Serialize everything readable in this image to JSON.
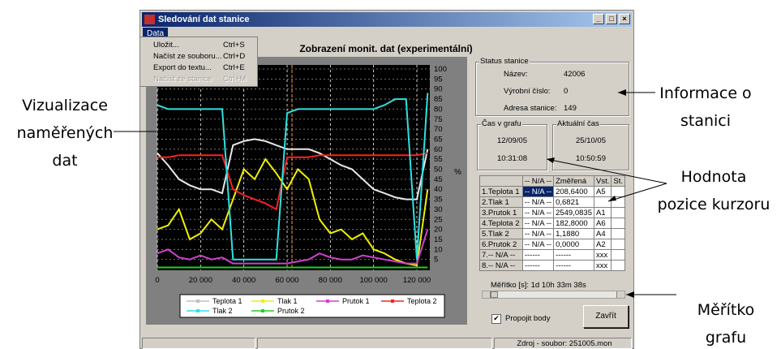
{
  "window": {
    "title": "Sledování dat stanice",
    "menu": "Data",
    "menu_items": [
      {
        "label": "Uložit...",
        "shortcut": "Ctrl+S"
      },
      {
        "label": "Načíst ze souboru...",
        "shortcut": "Ctrl+D"
      },
      {
        "label": "Export do textu...",
        "shortcut": "Ctrl+E"
      },
      {
        "label": "Načíst ze stanice",
        "shortcut": "Ctrl+M",
        "disabled": true
      }
    ]
  },
  "chart_data": {
    "type": "line",
    "title": "Zobrazení monit. dat (experimentální)",
    "y_unit_label": "%",
    "x": [
      0,
      5000,
      10000,
      15000,
      20000,
      25000,
      30000,
      35000,
      40000,
      45000,
      50000,
      55000,
      60000,
      65000,
      70000,
      75000,
      80000,
      85000,
      90000,
      95000,
      100000,
      105000,
      110000,
      115000,
      120000,
      125000
    ],
    "xlim": [
      0,
      126000
    ],
    "xticks": [
      0,
      {
        "value": 20000,
        "label": "20 000"
      },
      {
        "value": 40000,
        "label": "40 000"
      },
      {
        "value": 60000,
        "label": "60 000"
      },
      {
        "value": 80000,
        "label": "80 000"
      },
      {
        "value": 100000,
        "label": "100 000"
      },
      {
        "value": 120000,
        "label": "120 000"
      }
    ],
    "ylim": [
      0,
      100
    ],
    "yticks": [
      5,
      10,
      15,
      20,
      25,
      30,
      35,
      40,
      45,
      50,
      55,
      60,
      65,
      70,
      75,
      80,
      85,
      90,
      95,
      100
    ],
    "grid": true,
    "series": [
      {
        "name": "Teplota 1",
        "color": "#e8e8e8",
        "values": [
          58,
          52,
          45,
          42,
          40,
          40,
          38,
          62,
          64,
          65,
          64,
          62,
          60,
          60,
          60,
          58,
          55,
          52,
          50,
          45,
          40,
          38,
          36,
          35,
          35,
          60
        ]
      },
      {
        "name": "Tlak 1",
        "color": "#f0f000",
        "values": [
          20,
          22,
          30,
          15,
          18,
          25,
          20,
          35,
          50,
          45,
          55,
          48,
          40,
          50,
          45,
          25,
          18,
          20,
          15,
          18,
          10,
          8,
          5,
          3,
          2,
          40
        ]
      },
      {
        "name": "Prutok 1",
        "color": "#d040d0",
        "values": [
          8,
          10,
          6,
          5,
          7,
          5,
          6,
          3,
          3,
          3,
          3,
          3,
          3,
          4,
          5,
          8,
          6,
          5,
          5,
          7,
          6,
          5,
          4,
          3,
          3,
          20
        ]
      },
      {
        "name": "Teplota 2",
        "color": "#ff2020",
        "values": [
          56,
          56,
          57,
          57,
          57,
          57,
          57,
          40,
          37,
          35,
          33,
          30,
          56,
          56,
          56,
          57,
          57,
          57,
          57,
          57,
          57,
          57,
          57,
          57,
          57,
          58
        ]
      },
      {
        "name": "Tlak 2",
        "color": "#30e0e0",
        "values": [
          82,
          80,
          80,
          80,
          80,
          80,
          80,
          5,
          5,
          5,
          5,
          5,
          78,
          80,
          80,
          80,
          80,
          80,
          80,
          80,
          80,
          82,
          85,
          85,
          5,
          88
        ]
      },
      {
        "name": "Prutok 2",
        "color": "#20d020",
        "values": [
          1,
          1,
          1,
          1,
          1,
          1,
          1,
          1,
          1,
          1,
          1,
          1,
          1,
          1,
          1,
          1,
          1,
          1,
          1,
          1,
          1,
          1,
          1,
          1,
          1,
          1
        ]
      }
    ]
  },
  "status_stanice": {
    "title": "Status stanice",
    "fields": [
      {
        "label": "Název:",
        "value": "42006"
      },
      {
        "label": "Výrobní číslo:",
        "value": "0"
      },
      {
        "label": "Adresa stanice:",
        "value": "149"
      }
    ]
  },
  "cas_v_grafu": {
    "title": "Čas v grafu",
    "date": "12/09/05",
    "time": "10:31:08"
  },
  "aktualni_cas": {
    "title": "Aktuální čas",
    "date": "25/10/05",
    "time": "10:50:59"
  },
  "table": {
    "header": [
      "-- N/A --",
      "Změřená",
      "Vst.",
      "St."
    ],
    "rows": [
      [
        "1.Teplota 1",
        "-- N/A --",
        "208,6400",
        "A5"
      ],
      [
        "2.Tlak 1",
        "-- N/A --",
        "0,6821"
      ],
      [
        "3.Prutok 1",
        "-- N/A --",
        "2549,0835",
        "A1"
      ],
      [
        "4.Teplota 2",
        "-- N/A --",
        "182,8000",
        "A6"
      ],
      [
        "5.Tlak 2",
        "-- N/A --",
        "1,1880",
        "A4"
      ],
      [
        "6.Prutok 2",
        "-- N/A --",
        "0,0000",
        "A2"
      ],
      [
        "7.-- N/A --",
        "------",
        "------",
        "xxx"
      ],
      [
        "8.-- N/A --",
        "------",
        "------",
        "xxx"
      ]
    ]
  },
  "scale_label": "Měřítko [s]: 1d 10h 33m 38s",
  "checkbox": {
    "label": "Propojit body",
    "checked": true
  },
  "button": "Zavřít",
  "status_bar": "Zdroj - soubor: 251005.mon",
  "annotations": {
    "chart": [
      "Vizualizace",
      "naměřených",
      "dat"
    ],
    "info": [
      "Informace o",
      "stanici"
    ],
    "cursor": [
      "Hodnota",
      "pozice kurzoru"
    ],
    "scale": [
      "Měřítko",
      "grafu"
    ]
  }
}
